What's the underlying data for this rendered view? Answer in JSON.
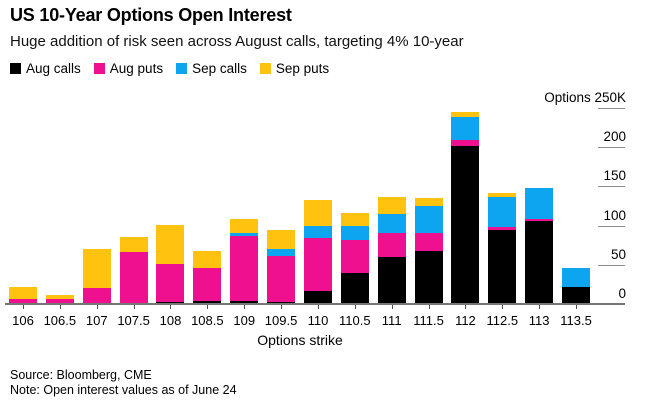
{
  "header": {
    "title": "US 10-Year Options Open Interest",
    "subtitle": "Huge addition of risk seen across August calls, targeting 4% 10-year"
  },
  "chart_data": {
    "type": "bar",
    "stacked": true,
    "title": "US 10-Year Options Open Interest",
    "subtitle": "Huge addition of risk seen across August calls, targeting 4% 10-year",
    "xlabel": "Options strike",
    "unit": "thousands of contracts (K)",
    "ylim": [
      0,
      250
    ],
    "grid": false,
    "legend_position": "top-left",
    "y_axis": {
      "position": "right",
      "top_label": "Options 250K",
      "tick_labels": [
        "0",
        "50",
        "100",
        "150",
        "200"
      ],
      "tick_values": [
        0,
        50,
        100,
        150,
        200
      ],
      "top_tick_value": 250
    },
    "categories": [
      "106",
      "106.5",
      "107",
      "107.5",
      "108",
      "108.5",
      "109",
      "109.5",
      "110",
      "110.5",
      "111",
      "111.5",
      "112",
      "112.5",
      "113",
      "113.5"
    ],
    "series": [
      {
        "name": "Aug calls",
        "color": "#000000",
        "values": [
          0,
          0,
          0,
          0,
          3,
          4,
          4,
          3,
          16,
          40,
          60,
          67,
          201,
          94,
          106,
          22
        ]
      },
      {
        "name": "Aug puts",
        "color": "#ee108e",
        "values": [
          6,
          7,
          21,
          66,
          48,
          42,
          83,
          58,
          68,
          42,
          30,
          24,
          8,
          4,
          3,
          0
        ]
      },
      {
        "name": "Sep calls",
        "color": "#0da5f0",
        "values": [
          0,
          0,
          0,
          0,
          0,
          0,
          3,
          9,
          15,
          17,
          25,
          34,
          29,
          38,
          39,
          24
        ]
      },
      {
        "name": "Sep puts",
        "color": "#ffc20e",
        "values": [
          16,
          5,
          49,
          20,
          50,
          22,
          18,
          25,
          34,
          17,
          22,
          10,
          7,
          6,
          0,
          0
        ]
      }
    ]
  },
  "axis_colors": {
    "line": "#767676",
    "tick": "#8c8c8c",
    "xtick": "#4d4d4d"
  },
  "footer": {
    "source": "Source: Bloomberg, CME",
    "note": "Note: Open interest values as of June 24"
  }
}
